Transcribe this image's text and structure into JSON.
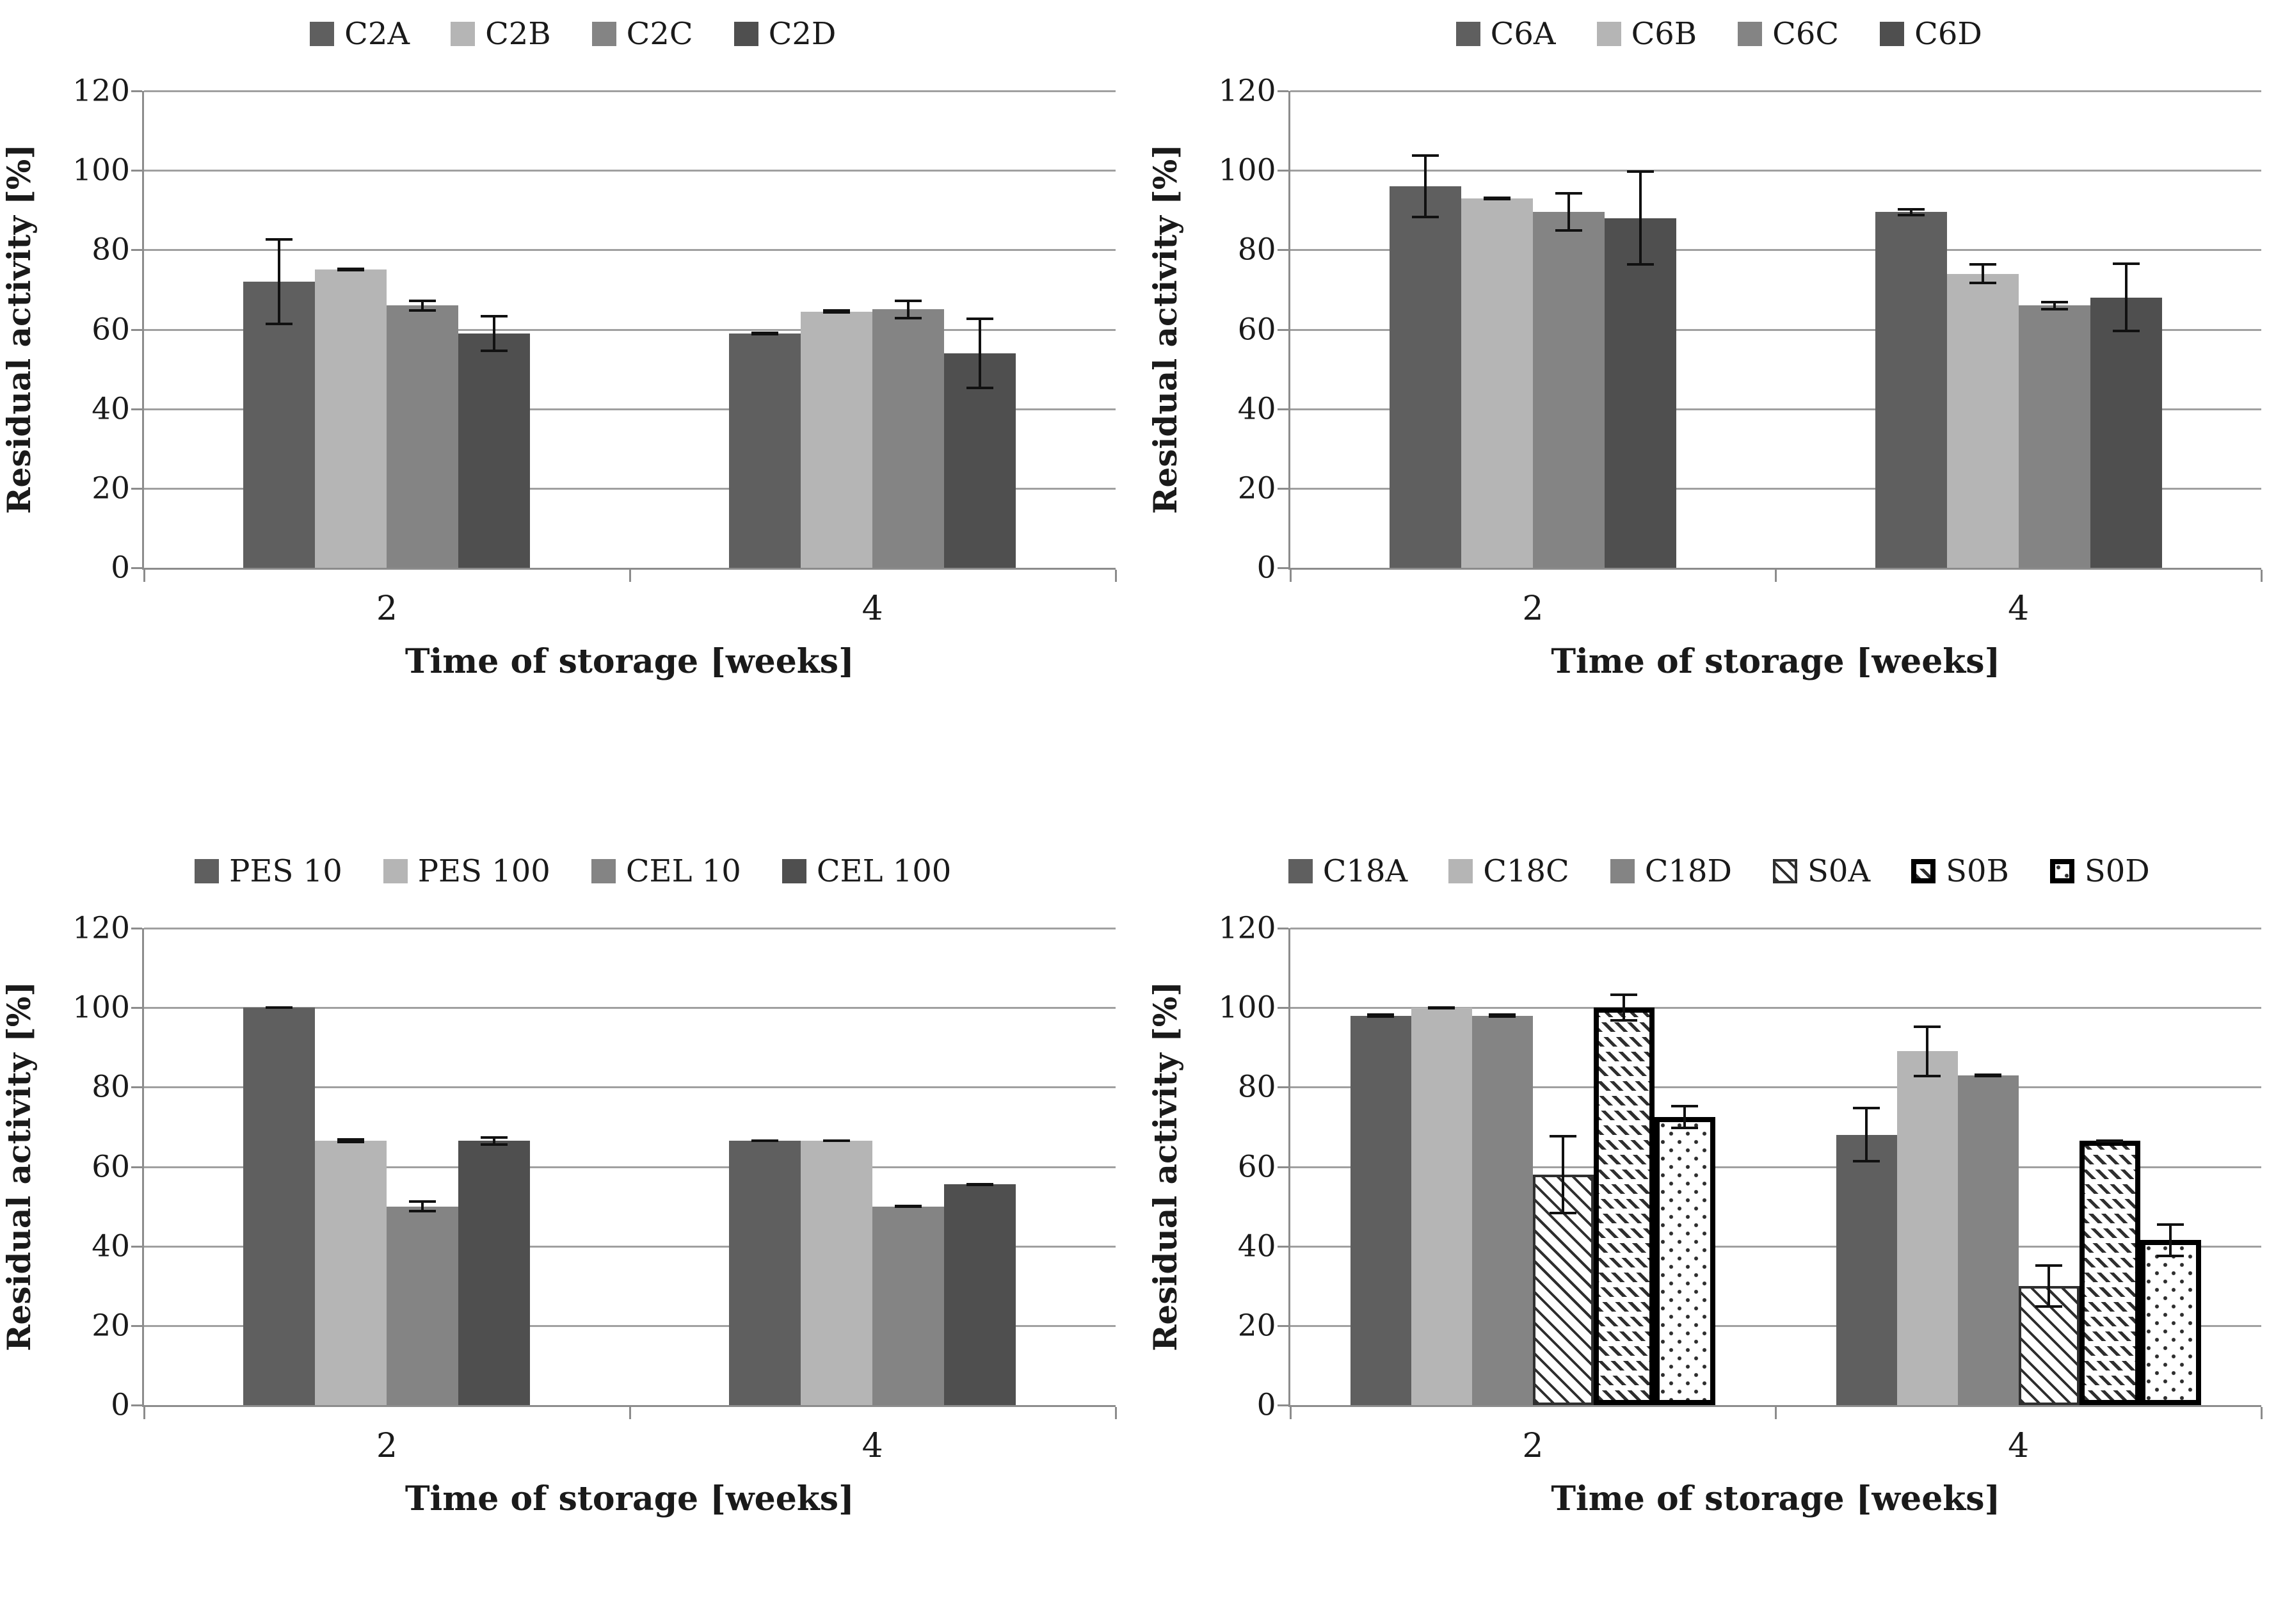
{
  "figure": {
    "background": "#ffffff",
    "grid_color": "#a0a0a0",
    "axis_color": "#8c8c8c",
    "error_bar_color": "#111111",
    "series_palette": {
      "dark": "#5f5f5f",
      "light": "#b5b5b5",
      "medium": "#848484",
      "darker": "#4f4f4f"
    }
  },
  "chart_data": [
    {
      "type": "bar",
      "position": "top-left",
      "title": "",
      "xlabel": "Time of storage [weeks]",
      "ylabel": "Residual activity [%]",
      "categories": [
        "2",
        "4"
      ],
      "ylim": [
        0,
        120
      ],
      "yticks": [
        0,
        20,
        40,
        60,
        80,
        100,
        120
      ],
      "grid": true,
      "legend_position": "top",
      "series": [
        {
          "name": "C2A",
          "pattern": "solid",
          "color": "#5f5f5f",
          "values": [
            72,
            59
          ],
          "errors": [
            11,
            0.5
          ]
        },
        {
          "name": "C2B",
          "pattern": "solid",
          "color": "#b5b5b5",
          "values": [
            75,
            64.5
          ],
          "errors": [
            0.5,
            0.5
          ]
        },
        {
          "name": "C2C",
          "pattern": "solid",
          "color": "#848484",
          "values": [
            66,
            65
          ],
          "errors": [
            1.5,
            2.5
          ]
        },
        {
          "name": "C2D",
          "pattern": "solid",
          "color": "#4f4f4f",
          "values": [
            59,
            54
          ],
          "errors": [
            4.7,
            9
          ]
        }
      ]
    },
    {
      "type": "bar",
      "position": "top-right",
      "title": "",
      "xlabel": "Time of storage [weeks]",
      "ylabel": "Residual activity [%]",
      "categories": [
        "2",
        "4"
      ],
      "ylim": [
        0,
        120
      ],
      "yticks": [
        0,
        20,
        40,
        60,
        80,
        100,
        120
      ],
      "grid": true,
      "legend_position": "top",
      "series": [
        {
          "name": "C6A",
          "pattern": "solid",
          "color": "#5f5f5f",
          "values": [
            96,
            89.5
          ],
          "errors": [
            8,
            1
          ]
        },
        {
          "name": "C6B",
          "pattern": "solid",
          "color": "#b5b5b5",
          "values": [
            93,
            74
          ],
          "errors": [
            0.5,
            2.6
          ]
        },
        {
          "name": "C6C",
          "pattern": "solid",
          "color": "#848484",
          "values": [
            89.5,
            66
          ],
          "errors": [
            5,
            1.2
          ]
        },
        {
          "name": "C6D",
          "pattern": "solid",
          "color": "#4f4f4f",
          "values": [
            88,
            68
          ],
          "errors": [
            12,
            8.8
          ]
        }
      ]
    },
    {
      "type": "bar",
      "position": "bottom-left",
      "title": "",
      "xlabel": "Time of storage [weeks]",
      "ylabel": "Residual activity [%]",
      "categories": [
        "2",
        "4"
      ],
      "ylim": [
        0,
        120
      ],
      "yticks": [
        0,
        20,
        40,
        60,
        80,
        100,
        120
      ],
      "grid": true,
      "legend_position": "top",
      "series": [
        {
          "name": "PES 10",
          "pattern": "solid",
          "color": "#5f5f5f",
          "values": [
            100,
            66.5
          ],
          "errors": [
            0.3,
            0.3
          ]
        },
        {
          "name": "PES 100",
          "pattern": "solid",
          "color": "#b5b5b5",
          "values": [
            66.5,
            66.5
          ],
          "errors": [
            0.7,
            0.3
          ]
        },
        {
          "name": "CEL 10",
          "pattern": "solid",
          "color": "#848484",
          "values": [
            50,
            50
          ],
          "errors": [
            1.5,
            0.3
          ]
        },
        {
          "name": "CEL 100",
          "pattern": "solid",
          "color": "#4f4f4f",
          "values": [
            66.5,
            55.5
          ],
          "errors": [
            1.2,
            0.3
          ]
        }
      ]
    },
    {
      "type": "bar",
      "position": "bottom-right",
      "title": "",
      "xlabel": "Time of storage [weeks]",
      "ylabel": "Residual activity [%]",
      "categories": [
        "2",
        "4"
      ],
      "ylim": [
        0,
        120
      ],
      "yticks": [
        0,
        20,
        40,
        60,
        80,
        100,
        120
      ],
      "grid": true,
      "legend_position": "top",
      "series": [
        {
          "name": "C18A",
          "pattern": "solid",
          "color": "#5f5f5f",
          "values": [
            98,
            68
          ],
          "errors": [
            0.5,
            7
          ]
        },
        {
          "name": "C18C",
          "pattern": "solid",
          "color": "#b5b5b5",
          "values": [
            100,
            89
          ],
          "errors": [
            0.4,
            6.5
          ]
        },
        {
          "name": "C18D",
          "pattern": "solid",
          "color": "#848484",
          "values": [
            98,
            83
          ],
          "errors": [
            0.5,
            0.5
          ]
        },
        {
          "name": "S0A",
          "pattern": "diagonal-hatch",
          "color": "#ffffff",
          "values": [
            58,
            30
          ],
          "errors": [
            10,
            5.5
          ]
        },
        {
          "name": "S0B",
          "pattern": "dash-rows",
          "color": "#ffffff",
          "values": [
            100,
            66.5
          ],
          "errors": [
            3.5,
            0.4
          ]
        },
        {
          "name": "S0D",
          "pattern": "dots",
          "color": "#ffffff",
          "values": [
            72.5,
            41.5
          ],
          "errors": [
            3,
            4.3
          ]
        }
      ]
    }
  ]
}
